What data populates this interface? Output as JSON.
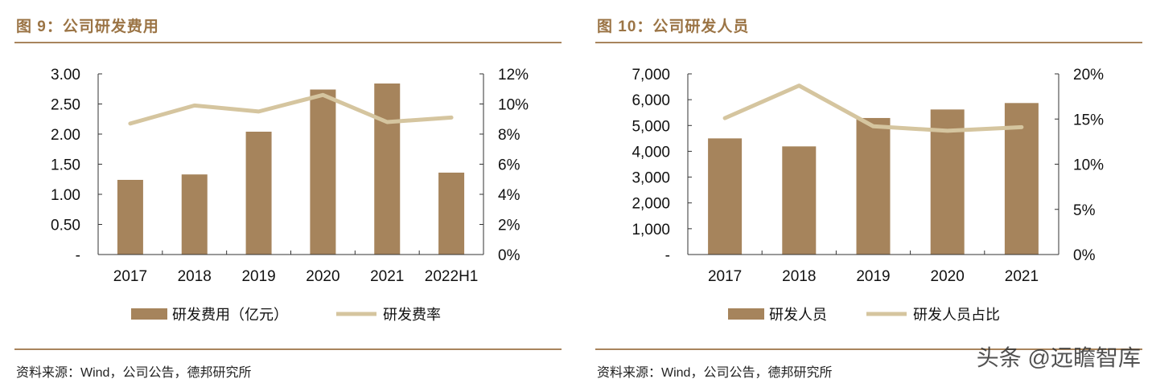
{
  "colors": {
    "bar": "#a6845c",
    "line": "#d5c59f",
    "title": "#9b7445"
  },
  "watermark": "头条 @远瞻智库",
  "chart_data": [
    {
      "type": "bar",
      "title": "图 9：公司研发费用",
      "source": "资料来源：Wind，公司公告，德邦研究所",
      "categories": [
        "2017",
        "2018",
        "2019",
        "2020",
        "2021",
        "2022H1"
      ],
      "series": [
        {
          "name": "研发费用（亿元）",
          "type": "bar",
          "axis": "left",
          "values": [
            1.24,
            1.33,
            2.04,
            2.74,
            2.84,
            1.36
          ]
        },
        {
          "name": "研发费率",
          "type": "line",
          "axis": "right",
          "values": [
            8.7,
            9.9,
            9.5,
            10.6,
            8.8,
            9.1
          ]
        }
      ],
      "ylim": [
        0,
        3
      ],
      "yticks": [
        "-",
        "0.50",
        "1.00",
        "1.50",
        "2.00",
        "2.50",
        "3.00"
      ],
      "y2lim": [
        0,
        12
      ],
      "y2ticks": [
        "0%",
        "2%",
        "4%",
        "6%",
        "8%",
        "10%",
        "12%"
      ],
      "legend": "bottom"
    },
    {
      "type": "bar",
      "title": "图 10：公司研发人员",
      "source": "资料来源：Wind，公司公告，德邦研究所",
      "categories": [
        "2017",
        "2018",
        "2019",
        "2020",
        "2021"
      ],
      "series": [
        {
          "name": "研发人员",
          "type": "bar",
          "axis": "left",
          "values": [
            4500,
            4190,
            5290,
            5620,
            5870
          ]
        },
        {
          "name": "研发人员占比",
          "type": "line",
          "axis": "right",
          "values": [
            15.1,
            18.7,
            14.2,
            13.7,
            14.1
          ]
        }
      ],
      "ylim": [
        0,
        7000
      ],
      "yticks": [
        "-",
        "1,000",
        "2,000",
        "3,000",
        "4,000",
        "5,000",
        "6,000",
        "7,000"
      ],
      "y2lim": [
        0,
        20
      ],
      "y2ticks": [
        "0%",
        "5%",
        "10%",
        "15%",
        "20%"
      ],
      "legend": "bottom"
    }
  ]
}
